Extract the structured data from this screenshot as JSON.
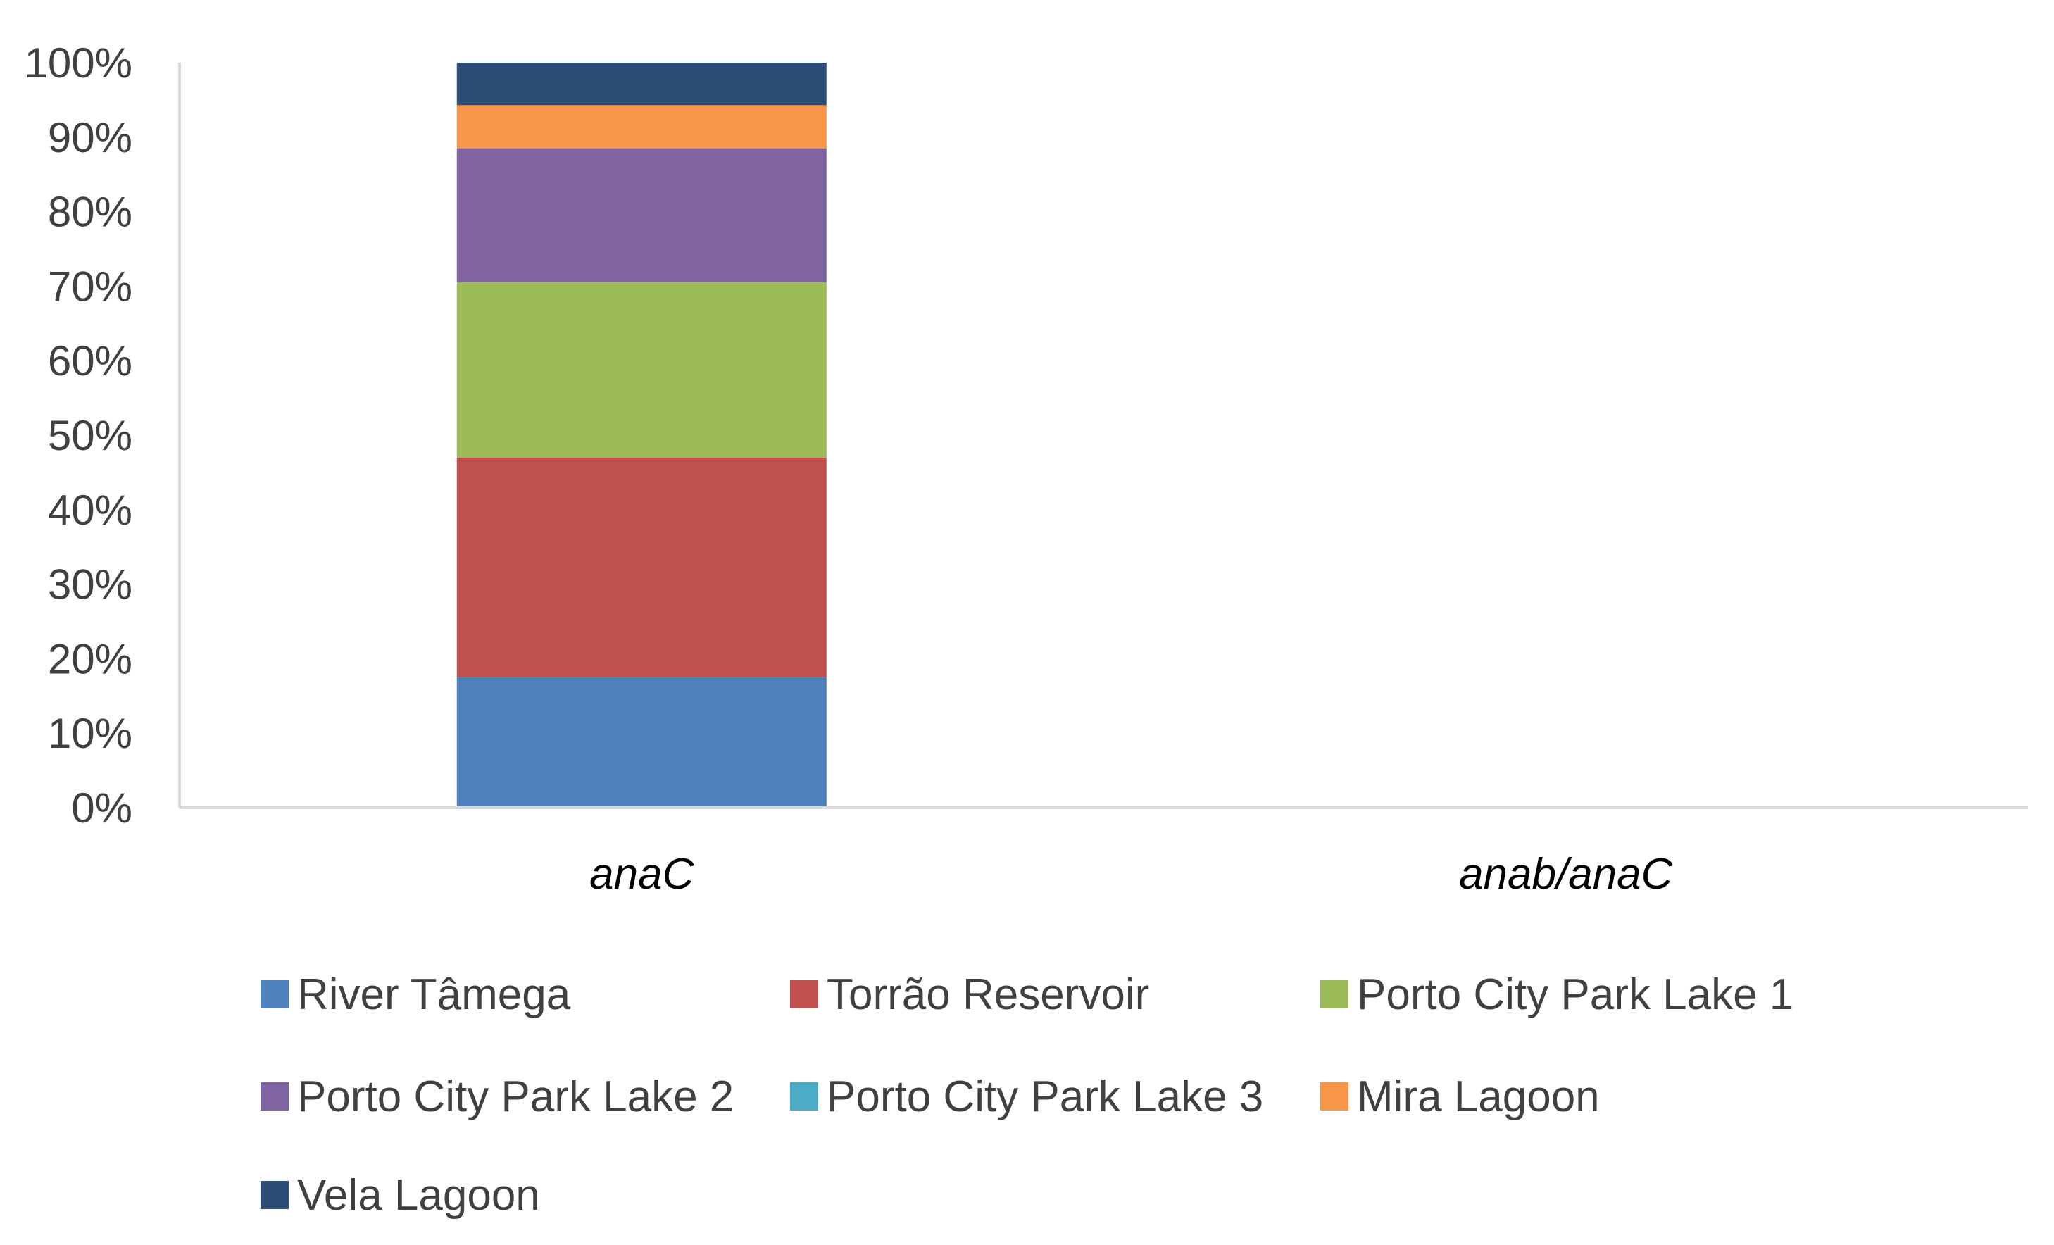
{
  "chart_data": {
    "type": "bar",
    "stacked": true,
    "percent_stacked": true,
    "categories": [
      "anaC",
      "anab/anaC"
    ],
    "series": [
      {
        "name": "River Tâmega",
        "color": "#4F81BD",
        "values": [
          17.5,
          0
        ]
      },
      {
        "name": "Torrão Reservoir",
        "color": "#C0504D",
        "values": [
          29.5,
          0
        ]
      },
      {
        "name": "Porto City Park Lake 1",
        "color": "#9BBB59",
        "values": [
          23.5,
          0
        ]
      },
      {
        "name": "Porto City Park Lake 2",
        "color": "#8064A2",
        "values": [
          18,
          0
        ]
      },
      {
        "name": "Porto City Park Lake 3",
        "color": "#4BACC6",
        "values": [
          0,
          0
        ]
      },
      {
        "name": "Mira Lagoon",
        "color": "#F79646",
        "values": [
          5.8,
          0
        ]
      },
      {
        "name": "Vela Lagoon",
        "color": "#2C4D75",
        "values": [
          5.7,
          0
        ]
      }
    ],
    "y_ticks": [
      "0%",
      "10%",
      "20%",
      "30%",
      "40%",
      "50%",
      "60%",
      "70%",
      "80%",
      "90%",
      "100%"
    ],
    "ylim": [
      0,
      100
    ],
    "title": "",
    "xlabel": "",
    "ylabel": "",
    "grid": false,
    "legend_position": "bottom"
  }
}
